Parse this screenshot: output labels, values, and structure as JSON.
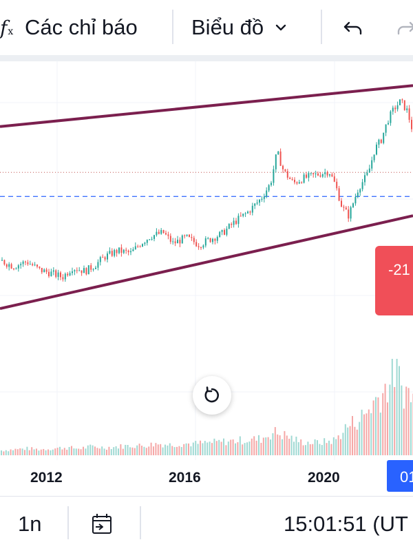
{
  "toolbar": {
    "fx_icon": "function-icon",
    "indicators_label": "Các chỉ báo",
    "chart_type_label": "Biểu đồ",
    "chevron_icon": "chevron-down-icon",
    "undo_icon": "undo-icon",
    "redo_icon": "redo-icon"
  },
  "price_label": "-21",
  "reset_icon": "reset-rotate-icon",
  "time_axis": {
    "years": [
      "2012",
      "2016",
      "2020"
    ],
    "current_badge": "01"
  },
  "bottom": {
    "interval": "1n",
    "goto_date_icon": "calendar-goto-icon",
    "clock": "15:01:51 (UT"
  },
  "colors": {
    "up": "#26a69a",
    "down": "#ef5350",
    "channel": "#7b1f4e",
    "badge": "#2962ff",
    "price_label_bg": "#f04f58"
  },
  "chart_data": {
    "type": "candlestick",
    "x_ticks": [
      "2012",
      "2016",
      "2020"
    ],
    "x_range": [
      2009.6,
      2022.3
    ],
    "y_range": [
      0,
      100
    ],
    "title": "",
    "xlabel": "",
    "ylabel": "",
    "price": [
      [
        2009.6,
        25.8
      ],
      [
        2010.0,
        23.5
      ],
      [
        2010.4,
        25.5
      ],
      [
        2010.8,
        22.0
      ],
      [
        2011.2,
        20.5
      ],
      [
        2011.5,
        19.0
      ],
      [
        2011.8,
        23.0
      ],
      [
        2012.2,
        21.5
      ],
      [
        2012.5,
        24.0
      ],
      [
        2012.8,
        27.5
      ],
      [
        2013.2,
        30.0
      ],
      [
        2013.6,
        29.0
      ],
      [
        2013.9,
        33.0
      ],
      [
        2014.2,
        36.0
      ],
      [
        2014.6,
        37.5
      ],
      [
        2014.9,
        33.0
      ],
      [
        2015.3,
        35.5
      ],
      [
        2015.7,
        32.5
      ],
      [
        2016.0,
        34.5
      ],
      [
        2016.4,
        37.0
      ],
      [
        2016.8,
        42.0
      ],
      [
        2017.2,
        46.0
      ],
      [
        2017.6,
        51.5
      ],
      [
        2017.9,
        58.0
      ],
      [
        2018.1,
        71.0
      ],
      [
        2018.3,
        63.0
      ],
      [
        2018.6,
        58.0
      ],
      [
        2018.9,
        60.0
      ],
      [
        2019.3,
        61.5
      ],
      [
        2019.7,
        63.0
      ],
      [
        2019.9,
        57.0
      ],
      [
        2020.1,
        48.0
      ],
      [
        2020.3,
        44.5
      ],
      [
        2020.6,
        56.0
      ],
      [
        2020.9,
        62.0
      ],
      [
        2021.1,
        72.0
      ],
      [
        2021.3,
        76.0
      ],
      [
        2021.5,
        84.0
      ],
      [
        2021.7,
        89.0
      ],
      [
        2021.9,
        92.0
      ],
      [
        2022.1,
        88.0
      ],
      [
        2022.3,
        78.0
      ]
    ],
    "volume": [
      [
        2009.6,
        5
      ],
      [
        2010.0,
        6
      ],
      [
        2010.4,
        7
      ],
      [
        2010.8,
        6
      ],
      [
        2011.2,
        7
      ],
      [
        2011.6,
        8
      ],
      [
        2012.0,
        7
      ],
      [
        2012.4,
        9
      ],
      [
        2012.8,
        8
      ],
      [
        2013.2,
        9
      ],
      [
        2013.6,
        10
      ],
      [
        2014.0,
        10
      ],
      [
        2014.4,
        12
      ],
      [
        2014.8,
        11
      ],
      [
        2015.2,
        12
      ],
      [
        2015.6,
        12
      ],
      [
        2016.0,
        13
      ],
      [
        2016.4,
        14
      ],
      [
        2016.8,
        15
      ],
      [
        2017.2,
        16
      ],
      [
        2017.6,
        17
      ],
      [
        2018.0,
        24
      ],
      [
        2018.4,
        20
      ],
      [
        2018.8,
        14
      ],
      [
        2019.2,
        13
      ],
      [
        2019.6,
        14
      ],
      [
        2019.9,
        16
      ],
      [
        2020.2,
        28
      ],
      [
        2020.5,
        35
      ],
      [
        2020.8,
        42
      ],
      [
        2021.0,
        52
      ],
      [
        2021.2,
        60
      ],
      [
        2021.4,
        68
      ],
      [
        2021.6,
        78
      ],
      [
        2021.75,
        92
      ],
      [
        2021.9,
        70
      ],
      [
        2022.1,
        66
      ],
      [
        2022.3,
        60
      ]
    ],
    "channel": {
      "upper": [
        [
          2009.6,
          81.5
        ],
        [
          2022.3,
          98.5
        ]
      ],
      "lower": [
        [
          2009.6,
          6.0
        ],
        [
          2022.3,
          44.5
        ]
      ]
    },
    "levels": {
      "dotted": 62.5,
      "dashed": 52.5
    }
  }
}
